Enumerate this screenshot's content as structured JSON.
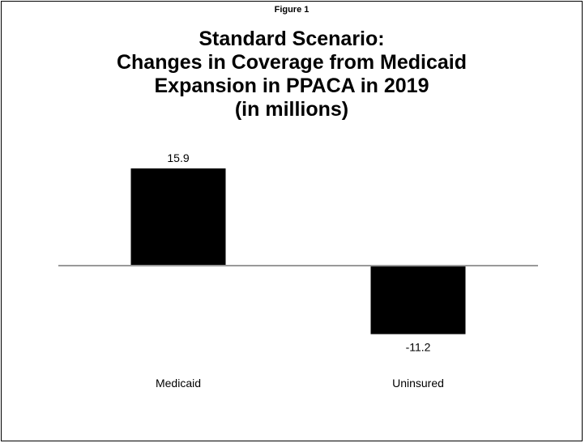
{
  "figure_label": "Figure 1",
  "title_lines": [
    "Standard Scenario:",
    "Changes in Coverage from Medicaid",
    "Expansion in PPACA in 2019",
    "(in millions)"
  ],
  "colors": {
    "bar": "#000000",
    "baseline": "#999999",
    "text": "#000000"
  },
  "chart_data": {
    "type": "bar",
    "title": "Standard Scenario: Changes in Coverage from Medicaid Expansion in PPACA in 2019 (in millions)",
    "categories": [
      "Medicaid",
      "Uninsured"
    ],
    "values": [
      15.9,
      -11.2
    ],
    "data_labels": [
      "15.9",
      "-11.2"
    ],
    "xlabel": "",
    "ylabel": "",
    "ylim": [
      -11.2,
      15.9
    ],
    "grid": false,
    "legend": "none"
  }
}
